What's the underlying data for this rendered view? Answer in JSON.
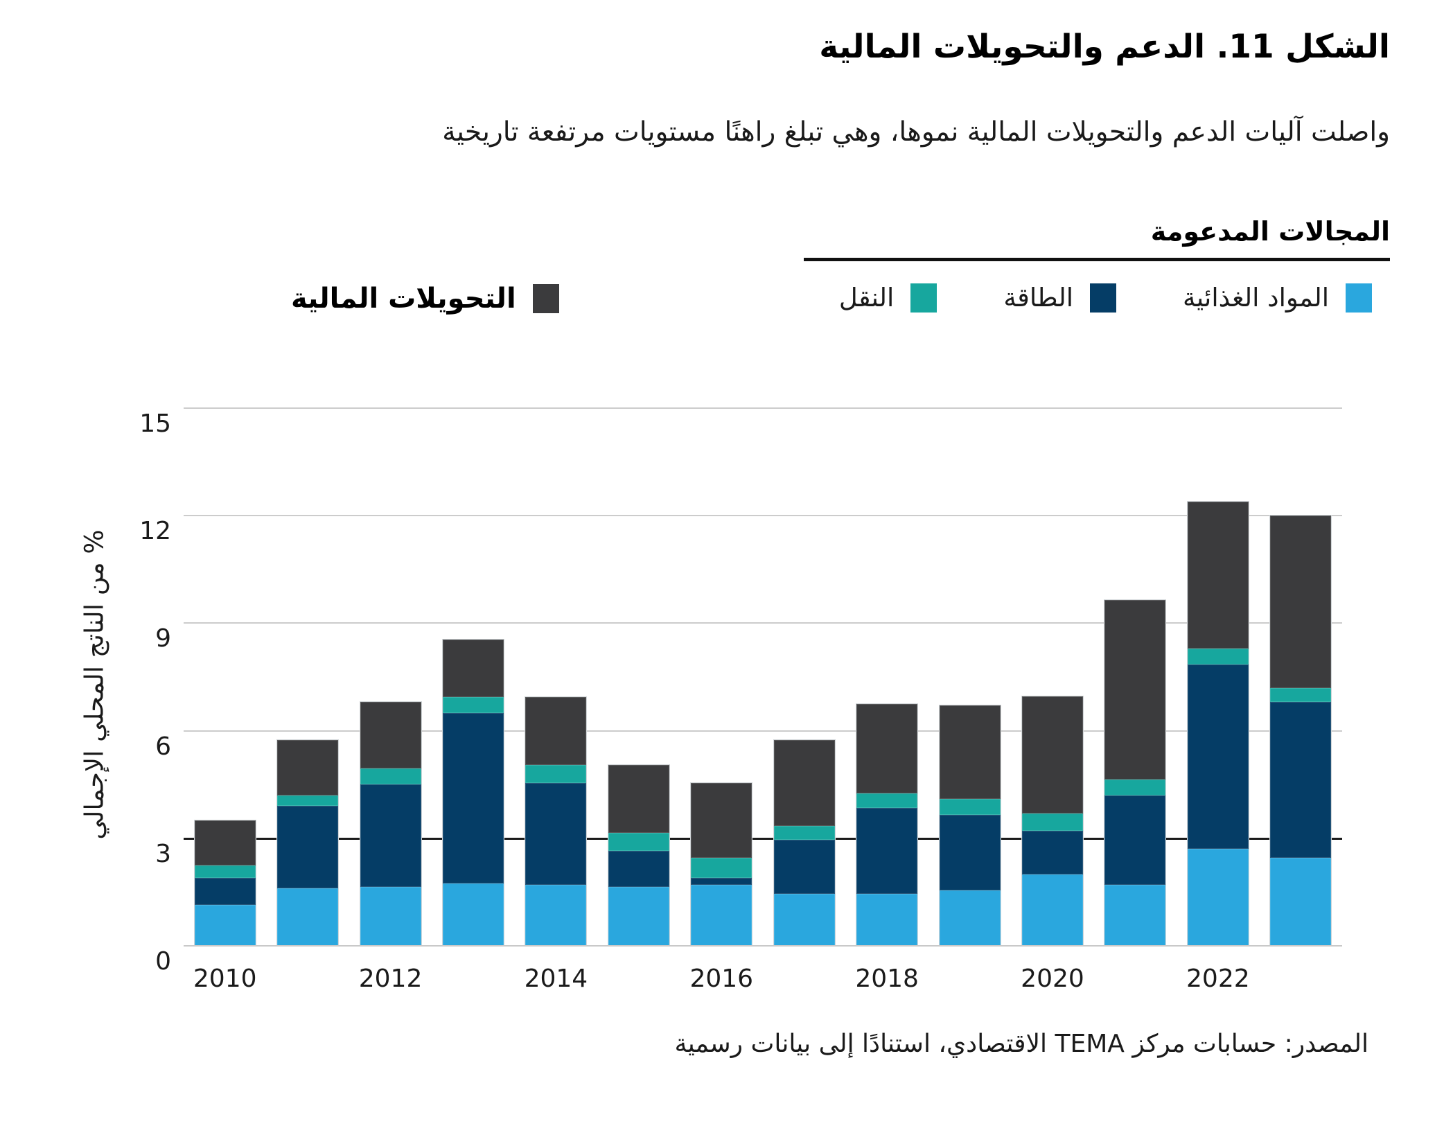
{
  "figure": {
    "title": "الشكل 11. الدعم والتحويلات المالية",
    "subtitle": "واصلت آليات الدعم والتحويلات المالية نموها، وهي تبلغ راهنًا مستويات مرتفعة تاريخية",
    "source": "المصدر: حسابات مركز TEMA الاقتصادي، استنادًا إلى بيانات رسمية"
  },
  "legend": {
    "group_title": "المجالات المدعومة",
    "items": [
      {
        "id": "food",
        "label": "المواد الغذائية",
        "color": "#2AA7DE"
      },
      {
        "id": "energy",
        "label": "الطاقة",
        "color": "#053D66"
      },
      {
        "id": "transport",
        "label": "النقل",
        "color": "#17A79E"
      }
    ],
    "standalone": {
      "id": "transfers",
      "label": "التحويلات المالية",
      "color": "#3B3B3D"
    }
  },
  "chart_data": {
    "type": "bar",
    "stacked": true,
    "title": "الشكل 11. الدعم والتحويلات المالية",
    "categories": [
      2010,
      2011,
      2012,
      2013,
      2014,
      2015,
      2016,
      2017,
      2018,
      2019,
      2020,
      2021,
      2022,
      2023
    ],
    "series": [
      {
        "id": "food",
        "name": "المواد الغذائية",
        "color": "#2AA7DE",
        "values": [
          1.15,
          1.6,
          1.65,
          1.75,
          1.7,
          1.65,
          1.7,
          1.45,
          1.45,
          1.55,
          2.0,
          1.7,
          2.7,
          2.45
        ]
      },
      {
        "id": "energy",
        "name": "الطاقة",
        "color": "#053D66",
        "values": [
          0.75,
          2.3,
          2.85,
          4.75,
          2.85,
          1.0,
          0.2,
          1.5,
          2.4,
          2.1,
          1.2,
          2.5,
          5.15,
          4.35
        ]
      },
      {
        "id": "transport",
        "name": "النقل",
        "color": "#17A79E",
        "values": [
          0.35,
          0.3,
          0.45,
          0.45,
          0.5,
          0.5,
          0.55,
          0.4,
          0.4,
          0.45,
          0.5,
          0.45,
          0.45,
          0.4
        ]
      },
      {
        "id": "transfers",
        "name": "التحويلات المالية",
        "color": "#3B3B3D",
        "values": [
          1.25,
          1.55,
          1.85,
          1.6,
          1.9,
          1.9,
          2.1,
          2.4,
          2.5,
          2.6,
          3.25,
          5.0,
          4.1,
          4.8
        ]
      }
    ],
    "totals": [
      3.5,
      5.75,
      6.8,
      8.55,
      6.95,
      5.05,
      4.55,
      5.75,
      6.75,
      6.7,
      6.95,
      9.65,
      12.4,
      12.0
    ],
    "ylabel": "% من الناتج المحلي الإجمالي",
    "ylim": [
      0,
      15
    ],
    "yticks": [
      0,
      3,
      6,
      9,
      12,
      15
    ],
    "emphasized_gridline": 3,
    "x_tick_labels": [
      "2010",
      "2012",
      "2014",
      "2016",
      "2018",
      "2020",
      "2022"
    ],
    "grid": "horizontal",
    "legend_position": "top"
  }
}
